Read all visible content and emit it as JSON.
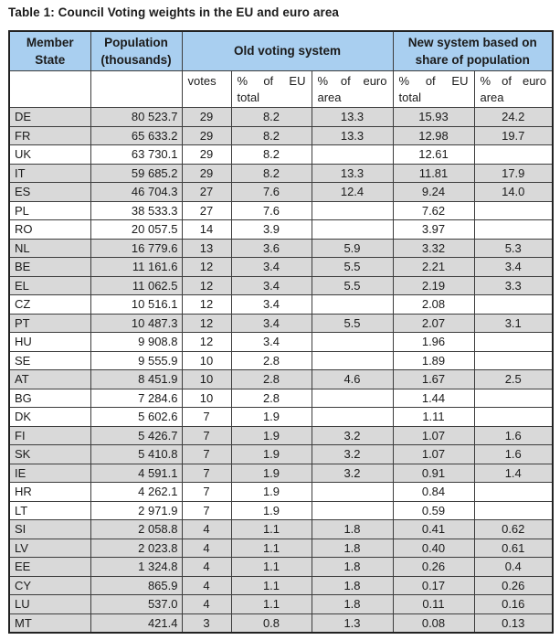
{
  "title": "Table 1: Council Voting weights in the EU and euro area",
  "colors": {
    "header_blue": "#a9cff0",
    "euro_row_gray": "#d9d9d9",
    "border": "#3d3d3d"
  },
  "table": {
    "header": {
      "member_state": "Member State",
      "population": "Population (thousands)",
      "old_system": "Old voting system",
      "new_system": "New system based on share of population",
      "votes": "votes",
      "pct_eu_line1": "% of EU",
      "pct_eu_line2": "total",
      "pct_euro_line1": "% of euro",
      "pct_euro_line2": "area"
    },
    "rows": [
      {
        "state": "DE",
        "population": "80 523.7",
        "votes": "29",
        "old_pct_eu": "8.2",
        "old_pct_euro": "13.3",
        "new_pct_eu": "15.93",
        "new_pct_euro": "24.2",
        "euro_member": true
      },
      {
        "state": "FR",
        "population": "65 633.2",
        "votes": "29",
        "old_pct_eu": "8.2",
        "old_pct_euro": "13.3",
        "new_pct_eu": "12.98",
        "new_pct_euro": "19.7",
        "euro_member": true
      },
      {
        "state": "UK",
        "population": "63 730.1",
        "votes": "29",
        "old_pct_eu": "8.2",
        "old_pct_euro": "",
        "new_pct_eu": "12.61",
        "new_pct_euro": "",
        "euro_member": false
      },
      {
        "state": "IT",
        "population": "59 685.2",
        "votes": "29",
        "old_pct_eu": "8.2",
        "old_pct_euro": "13.3",
        "new_pct_eu": "11.81",
        "new_pct_euro": "17.9",
        "euro_member": true
      },
      {
        "state": "ES",
        "population": "46 704.3",
        "votes": "27",
        "old_pct_eu": "7.6",
        "old_pct_euro": "12.4",
        "new_pct_eu": "9.24",
        "new_pct_euro": "14.0",
        "euro_member": true
      },
      {
        "state": "PL",
        "population": "38 533.3",
        "votes": "27",
        "old_pct_eu": "7.6",
        "old_pct_euro": "",
        "new_pct_eu": "7.62",
        "new_pct_euro": "",
        "euro_member": false
      },
      {
        "state": "RO",
        "population": "20 057.5",
        "votes": "14",
        "old_pct_eu": "3.9",
        "old_pct_euro": "",
        "new_pct_eu": "3.97",
        "new_pct_euro": "",
        "euro_member": false
      },
      {
        "state": "NL",
        "population": "16 779.6",
        "votes": "13",
        "old_pct_eu": "3.6",
        "old_pct_euro": "5.9",
        "new_pct_eu": "3.32",
        "new_pct_euro": "5.3",
        "euro_member": true
      },
      {
        "state": "BE",
        "population": "11 161.6",
        "votes": "12",
        "old_pct_eu": "3.4",
        "old_pct_euro": "5.5",
        "new_pct_eu": "2.21",
        "new_pct_euro": "3.4",
        "euro_member": true
      },
      {
        "state": "EL",
        "population": "11 062.5",
        "votes": "12",
        "old_pct_eu": "3.4",
        "old_pct_euro": "5.5",
        "new_pct_eu": "2.19",
        "new_pct_euro": "3.3",
        "euro_member": true
      },
      {
        "state": "CZ",
        "population": "10 516.1",
        "votes": "12",
        "old_pct_eu": "3.4",
        "old_pct_euro": "",
        "new_pct_eu": "2.08",
        "new_pct_euro": "",
        "euro_member": false
      },
      {
        "state": "PT",
        "population": "10 487.3",
        "votes": "12",
        "old_pct_eu": "3.4",
        "old_pct_euro": "5.5",
        "new_pct_eu": "2.07",
        "new_pct_euro": "3.1",
        "euro_member": true
      },
      {
        "state": "HU",
        "population": "9 908.8",
        "votes": "12",
        "old_pct_eu": "3.4",
        "old_pct_euro": "",
        "new_pct_eu": "1.96",
        "new_pct_euro": "",
        "euro_member": false
      },
      {
        "state": "SE",
        "population": "9 555.9",
        "votes": "10",
        "old_pct_eu": "2.8",
        "old_pct_euro": "",
        "new_pct_eu": "1.89",
        "new_pct_euro": "",
        "euro_member": false
      },
      {
        "state": "AT",
        "population": "8 451.9",
        "votes": "10",
        "old_pct_eu": "2.8",
        "old_pct_euro": "4.6",
        "new_pct_eu": "1.67",
        "new_pct_euro": "2.5",
        "euro_member": true
      },
      {
        "state": "BG",
        "population": "7 284.6",
        "votes": "10",
        "old_pct_eu": "2.8",
        "old_pct_euro": "",
        "new_pct_eu": "1.44",
        "new_pct_euro": "",
        "euro_member": false
      },
      {
        "state": "DK",
        "population": "5 602.6",
        "votes": "7",
        "old_pct_eu": "1.9",
        "old_pct_euro": "",
        "new_pct_eu": "1.11",
        "new_pct_euro": "",
        "euro_member": false
      },
      {
        "state": "FI",
        "population": "5 426.7",
        "votes": "7",
        "old_pct_eu": "1.9",
        "old_pct_euro": "3.2",
        "new_pct_eu": "1.07",
        "new_pct_euro": "1.6",
        "euro_member": true
      },
      {
        "state": "SK",
        "population": "5 410.8",
        "votes": "7",
        "old_pct_eu": "1.9",
        "old_pct_euro": "3.2",
        "new_pct_eu": "1.07",
        "new_pct_euro": "1.6",
        "euro_member": true
      },
      {
        "state": "IE",
        "population": "4 591.1",
        "votes": "7",
        "old_pct_eu": "1.9",
        "old_pct_euro": "3.2",
        "new_pct_eu": "0.91",
        "new_pct_euro": "1.4",
        "euro_member": true
      },
      {
        "state": "HR",
        "population": "4 262.1",
        "votes": "7",
        "old_pct_eu": "1.9",
        "old_pct_euro": "",
        "new_pct_eu": "0.84",
        "new_pct_euro": "",
        "euro_member": false
      },
      {
        "state": "LT",
        "population": "2 971.9",
        "votes": "7",
        "old_pct_eu": "1.9",
        "old_pct_euro": "",
        "new_pct_eu": "0.59",
        "new_pct_euro": "",
        "euro_member": false
      },
      {
        "state": "SI",
        "population": "2 058.8",
        "votes": "4",
        "old_pct_eu": "1.1",
        "old_pct_euro": "1.8",
        "new_pct_eu": "0.41",
        "new_pct_euro": "0.62",
        "euro_member": true
      },
      {
        "state": "LV",
        "population": "2 023.8",
        "votes": "4",
        "old_pct_eu": "1.1",
        "old_pct_euro": "1.8",
        "new_pct_eu": "0.40",
        "new_pct_euro": "0.61",
        "euro_member": true
      },
      {
        "state": "EE",
        "population": "1 324.8",
        "votes": "4",
        "old_pct_eu": "1.1",
        "old_pct_euro": "1.8",
        "new_pct_eu": "0.26",
        "new_pct_euro": "0.4",
        "euro_member": true
      },
      {
        "state": "CY",
        "population": "865.9",
        "votes": "4",
        "old_pct_eu": "1.1",
        "old_pct_euro": "1.8",
        "new_pct_eu": "0.17",
        "new_pct_euro": "0.26",
        "euro_member": true
      },
      {
        "state": "LU",
        "population": "537.0",
        "votes": "4",
        "old_pct_eu": "1.1",
        "old_pct_euro": "1.8",
        "new_pct_eu": "0.11",
        "new_pct_euro": "0.16",
        "euro_member": true
      },
      {
        "state": "MT",
        "population": "421.4",
        "votes": "3",
        "old_pct_eu": "0.8",
        "old_pct_euro": "1.3",
        "new_pct_eu": "0.08",
        "new_pct_euro": "0.13",
        "euro_member": true
      }
    ]
  }
}
